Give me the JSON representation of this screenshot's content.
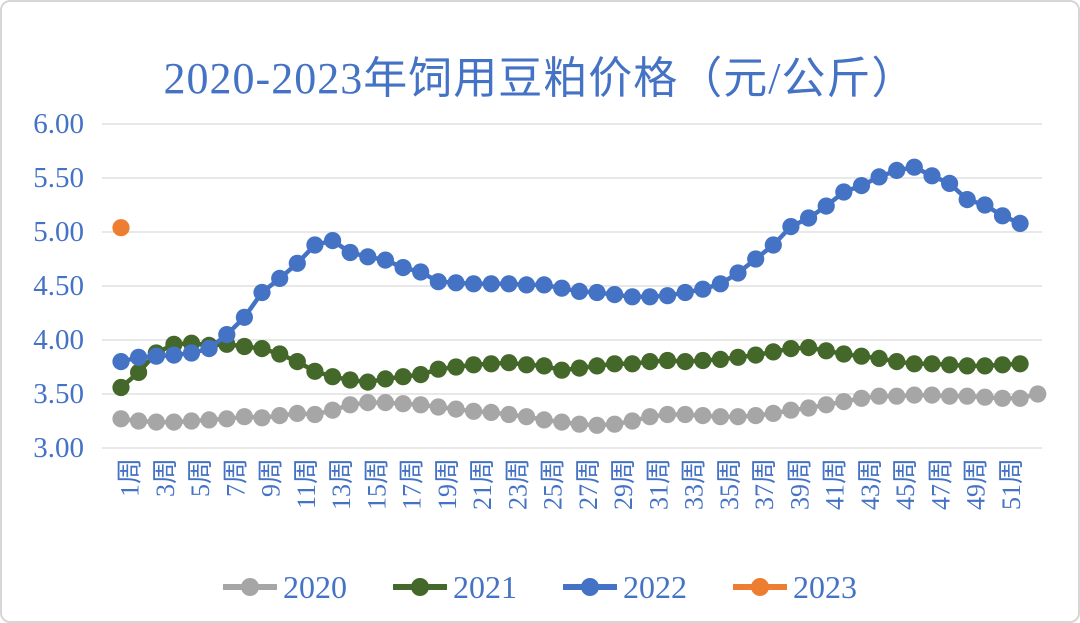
{
  "chart_data": {
    "type": "line",
    "title": "2020-2023年饲用豆粕价格（元/公斤）",
    "xlabel": "",
    "ylabel": "",
    "x_unit_suffix": "周",
    "x_tick_labels": [
      "1周",
      "3周",
      "5周",
      "7周",
      "9周",
      "11周",
      "13周",
      "15周",
      "17周",
      "19周",
      "21周",
      "23周",
      "25周",
      "27周",
      "29周",
      "31周",
      "33周",
      "35周",
      "37周",
      "39周",
      "41周",
      "43周",
      "45周",
      "47周",
      "49周",
      "51周"
    ],
    "y_axis": {
      "min": 3.0,
      "max": 6.0,
      "step": 0.5,
      "tick_labels": [
        "6.00",
        "5.50",
        "5.00",
        "4.50",
        "4.00",
        "3.50",
        "3.00"
      ]
    },
    "ylim": [
      3.0,
      6.0
    ],
    "grid": "horizontal",
    "legend_position": "bottom",
    "text_color": "#4472C4",
    "gridline_color": "#D9D9D9",
    "series": [
      {
        "name": "2020",
        "color": "#A6A6A6",
        "values": [
          3.27,
          3.25,
          3.24,
          3.24,
          3.25,
          3.26,
          3.27,
          3.29,
          3.28,
          3.3,
          3.32,
          3.31,
          3.35,
          3.4,
          3.42,
          3.42,
          3.41,
          3.4,
          3.38,
          3.36,
          3.34,
          3.33,
          3.31,
          3.29,
          3.26,
          3.24,
          3.22,
          3.21,
          3.22,
          3.25,
          3.29,
          3.31,
          3.31,
          3.3,
          3.29,
          3.29,
          3.3,
          3.32,
          3.35,
          3.37,
          3.4,
          3.43,
          3.46,
          3.48,
          3.48,
          3.49,
          3.49,
          3.48,
          3.48,
          3.47,
          3.46,
          3.46,
          3.5
        ]
      },
      {
        "name": "2021",
        "color": "#44682A",
        "values": [
          3.56,
          3.7,
          3.88,
          3.96,
          3.97,
          3.95,
          3.96,
          3.94,
          3.92,
          3.87,
          3.8,
          3.71,
          3.66,
          3.63,
          3.61,
          3.64,
          3.66,
          3.68,
          3.73,
          3.75,
          3.77,
          3.78,
          3.79,
          3.77,
          3.76,
          3.72,
          3.74,
          3.76,
          3.78,
          3.78,
          3.8,
          3.81,
          3.8,
          3.81,
          3.82,
          3.84,
          3.86,
          3.89,
          3.92,
          3.93,
          3.9,
          3.87,
          3.85,
          3.83,
          3.8,
          3.78,
          3.78,
          3.77,
          3.76,
          3.76,
          3.77,
          3.78
        ]
      },
      {
        "name": "2022",
        "color": "#4472C4",
        "values": [
          3.8,
          3.84,
          3.85,
          3.86,
          3.88,
          3.92,
          4.05,
          4.21,
          4.44,
          4.57,
          4.71,
          4.88,
          4.92,
          4.81,
          4.77,
          4.74,
          4.67,
          4.63,
          4.54,
          4.53,
          4.52,
          4.52,
          4.52,
          4.51,
          4.51,
          4.48,
          4.45,
          4.44,
          4.42,
          4.4,
          4.4,
          4.41,
          4.44,
          4.47,
          4.52,
          4.62,
          4.75,
          4.88,
          5.05,
          5.13,
          5.24,
          5.37,
          5.43,
          5.51,
          5.57,
          5.6,
          5.52,
          5.45,
          5.3,
          5.25,
          5.15,
          5.08
        ]
      },
      {
        "name": "2023",
        "color": "#ED7D31",
        "values": [
          5.04
        ]
      }
    ]
  }
}
